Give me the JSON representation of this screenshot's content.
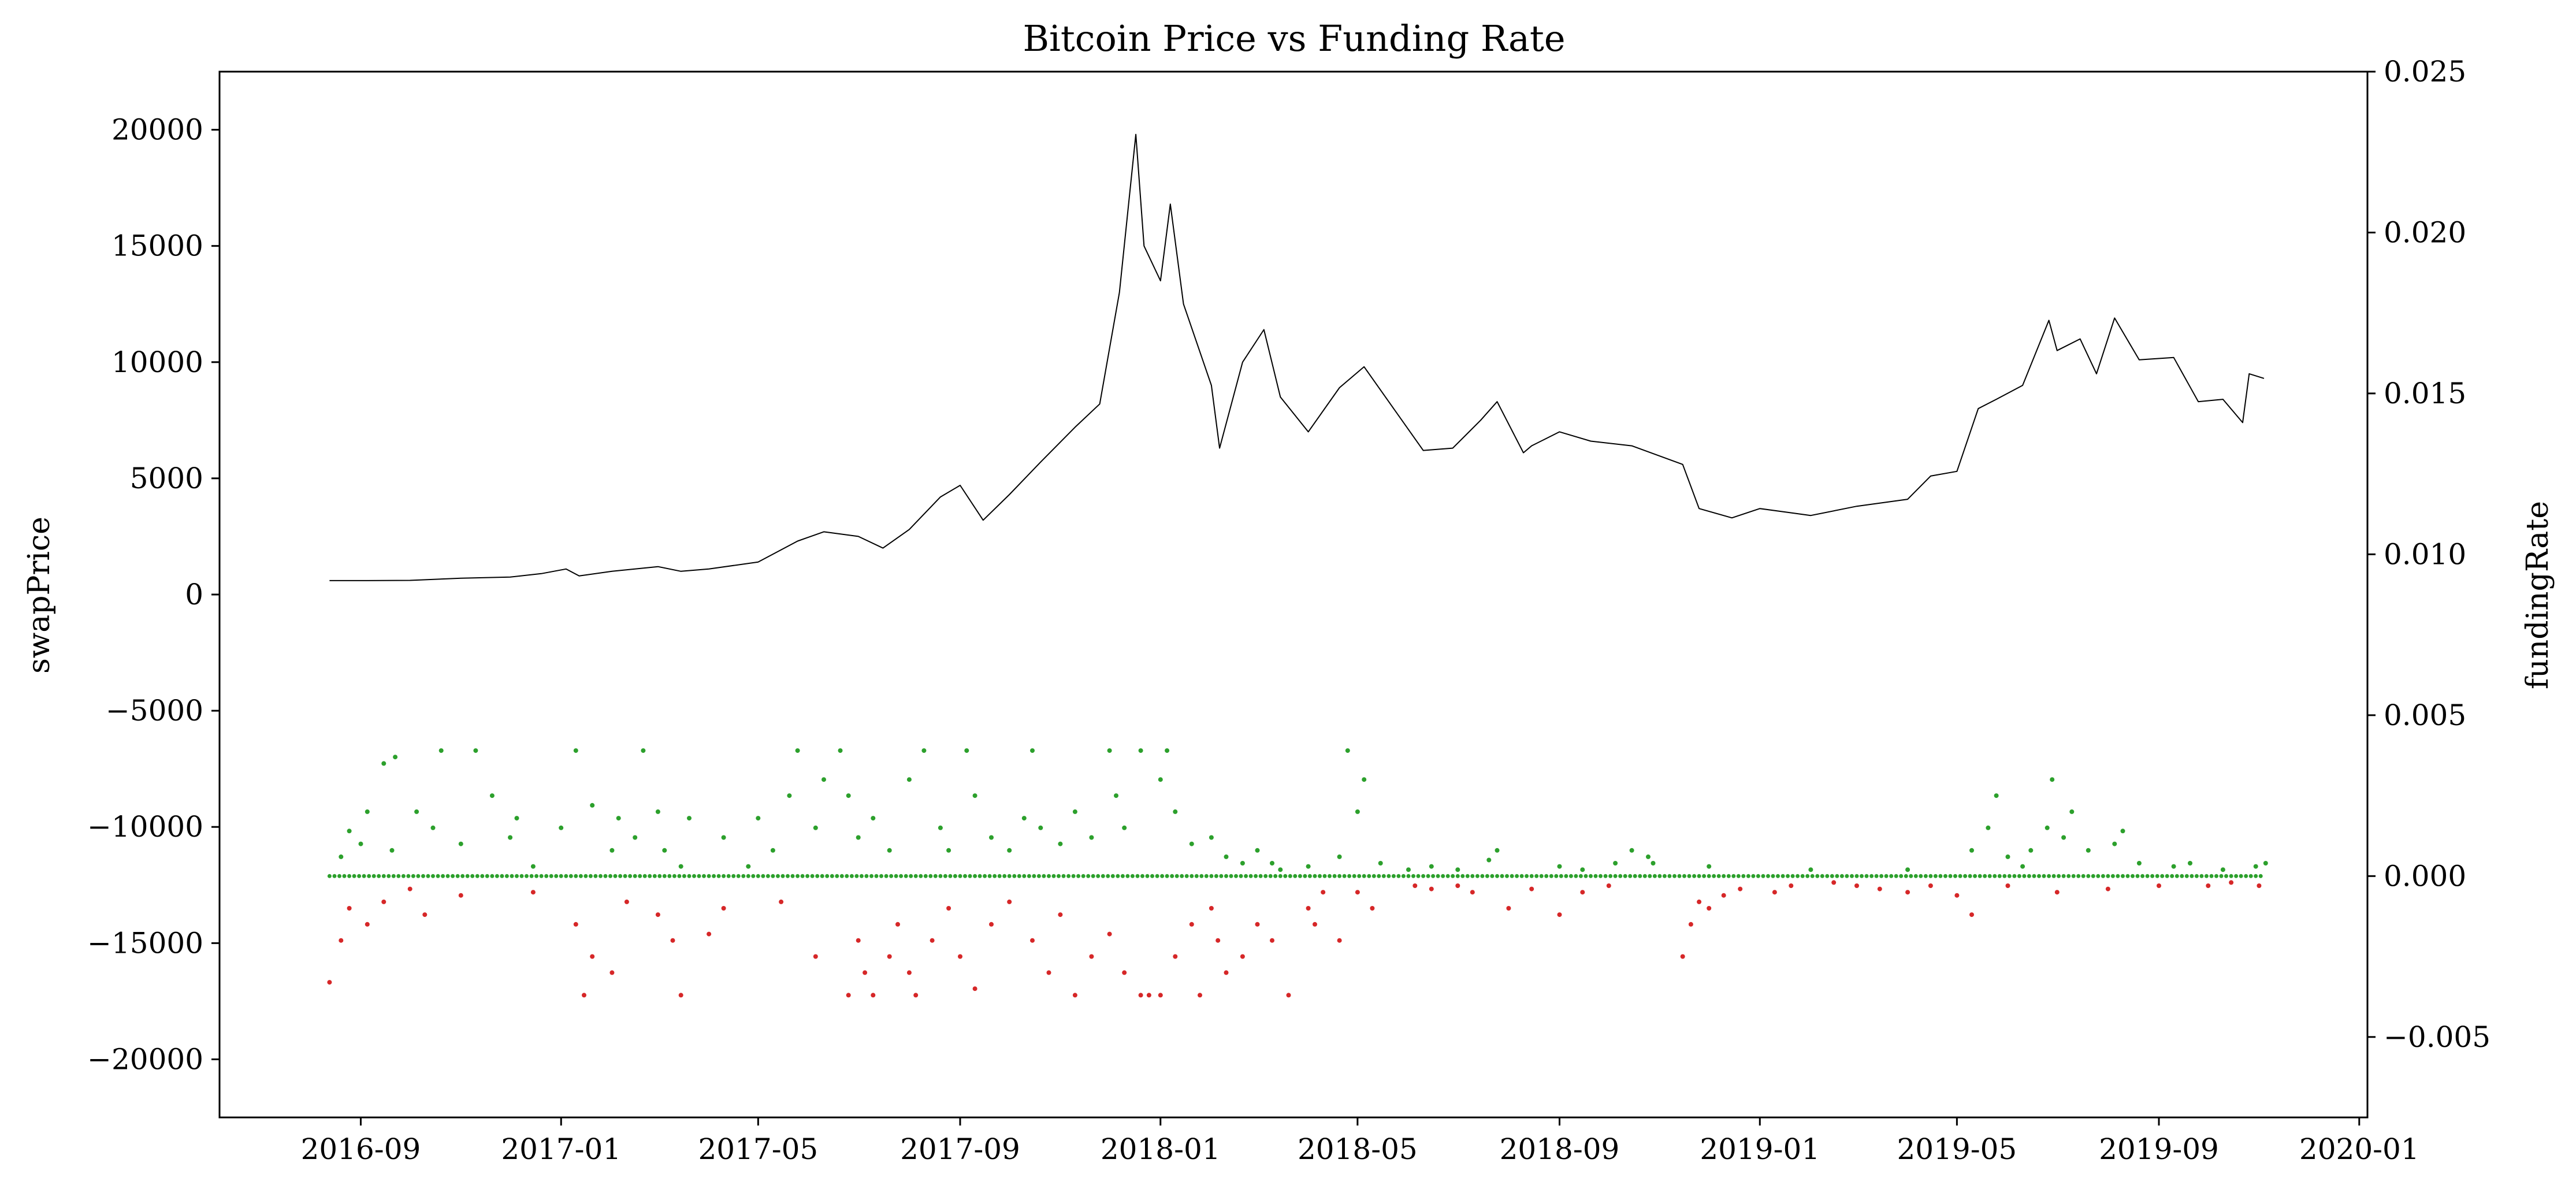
{
  "chart_data": {
    "type": "line",
    "title": "Bitcoin Price vs Funding Rate",
    "xlabel": "",
    "ylabel_left": "swapPrice",
    "ylabel_right": "fundingRate",
    "grid": false,
    "legend": "none",
    "x_ticks": [
      "2016-09",
      "2017-01",
      "2017-05",
      "2017-09",
      "2018-01",
      "2018-05",
      "2018-09",
      "2019-01",
      "2019-05",
      "2019-09",
      "2020-01"
    ],
    "y_left_ticks": [
      "20000",
      "15000",
      "10000",
      "5000",
      "0",
      "−5000",
      "−10000",
      "−15000",
      "−20000"
    ],
    "y_right_ticks": [
      "0.025",
      "0.020",
      "0.015",
      "0.010",
      "0.005",
      "0.000",
      "−0.005"
    ],
    "y_left_lim": [
      -22500,
      22500
    ],
    "y_right_lim": [
      -0.0075,
      0.025
    ],
    "x_lim": [
      "2016-06-07",
      "2020-01-06"
    ],
    "colors": {
      "price": "#000000",
      "positive_rate": "#2ca02c",
      "negative_rate": "#d62728"
    },
    "series": [
      {
        "axis": "left",
        "style": "line",
        "x": [
          "2016-08-13",
          "2016-09-01",
          "2016-10-01",
          "2016-11-01",
          "2016-12-01",
          "2016-12-20",
          "2017-01-04",
          "2017-01-12",
          "2017-02-01",
          "2017-03-01",
          "2017-03-15",
          "2017-04-01",
          "2017-05-01",
          "2017-05-25",
          "2017-06-10",
          "2017-07-01",
          "2017-07-16",
          "2017-08-01",
          "2017-08-20",
          "2017-09-01",
          "2017-09-15",
          "2017-10-01",
          "2017-10-20",
          "2017-11-10",
          "2017-11-25",
          "2017-12-07",
          "2017-12-17",
          "2017-12-22",
          "2018-01-01",
          "2018-01-07",
          "2018-01-15",
          "2018-02-01",
          "2018-02-06",
          "2018-02-20",
          "2018-03-05",
          "2018-03-15",
          "2018-04-01",
          "2018-04-20",
          "2018-05-05",
          "2018-05-20",
          "2018-06-10",
          "2018-06-28",
          "2018-07-15",
          "2018-07-25",
          "2018-08-10",
          "2018-08-15",
          "2018-09-01",
          "2018-09-20",
          "2018-10-15",
          "2018-11-15",
          "2018-11-25",
          "2018-12-15",
          "2019-01-01",
          "2019-02-01",
          "2019-03-01",
          "2019-04-01",
          "2019-04-15",
          "2019-05-01",
          "2019-05-14",
          "2019-05-25",
          "2019-06-10",
          "2019-06-26",
          "2019-07-01",
          "2019-07-15",
          "2019-07-25",
          "2019-08-05",
          "2019-08-20",
          "2019-09-10",
          "2019-09-25",
          "2019-10-10",
          "2019-10-22",
          "2019-10-26",
          "2019-11-04"
        ],
        "values": [
          600,
          600,
          610,
          700,
          750,
          900,
          1100,
          800,
          1000,
          1200,
          1000,
          1100,
          1400,
          2300,
          2700,
          2500,
          2000,
          2800,
          4200,
          4700,
          3200,
          4300,
          5700,
          7200,
          8200,
          13000,
          19800,
          15000,
          13500,
          16800,
          12500,
          9000,
          6300,
          10000,
          11400,
          8500,
          7000,
          8900,
          9800,
          8300,
          6200,
          6300,
          7500,
          8300,
          6100,
          6400,
          7000,
          6600,
          6400,
          5600,
          3700,
          3300,
          3700,
          3400,
          3800,
          4100,
          5100,
          5300,
          8000,
          8400,
          9000,
          11800,
          10500,
          11000,
          9500,
          11900,
          10100,
          10200,
          8300,
          8400,
          7400,
          9500,
          9300
        ]
      },
      {
        "axis": "right",
        "style": "scatter",
        "name": "",
        "note": "positive funding rates",
        "x": [
          "2016-08-20",
          "2016-08-25",
          "2016-09-01",
          "2016-09-05",
          "2016-09-15",
          "2016-09-20",
          "2016-09-22",
          "2016-10-05",
          "2016-10-15",
          "2016-10-20",
          "2016-11-01",
          "2016-11-10",
          "2016-11-20",
          "2016-12-01",
          "2016-12-05",
          "2016-12-15",
          "2017-01-01",
          "2017-01-10",
          "2017-01-20",
          "2017-02-01",
          "2017-02-05",
          "2017-02-15",
          "2017-02-20",
          "2017-03-01",
          "2017-03-05",
          "2017-03-15",
          "2017-03-20",
          "2017-04-10",
          "2017-04-25",
          "2017-05-01",
          "2017-05-10",
          "2017-05-20",
          "2017-05-25",
          "2017-06-05",
          "2017-06-10",
          "2017-06-20",
          "2017-06-25",
          "2017-07-01",
          "2017-07-10",
          "2017-07-20",
          "2017-08-01",
          "2017-08-10",
          "2017-08-20",
          "2017-08-25",
          "2017-09-05",
          "2017-09-10",
          "2017-09-20",
          "2017-10-01",
          "2017-10-10",
          "2017-10-15",
          "2017-10-20",
          "2017-11-01",
          "2017-11-10",
          "2017-11-20",
          "2017-12-01",
          "2017-12-05",
          "2017-12-10",
          "2017-12-20",
          "2018-01-01",
          "2018-01-05",
          "2018-01-10",
          "2018-01-20",
          "2018-02-01",
          "2018-02-10",
          "2018-02-20",
          "2018-03-01",
          "2018-03-10",
          "2018-03-15",
          "2018-04-01",
          "2018-04-20",
          "2018-04-25",
          "2018-05-01",
          "2018-05-05",
          "2018-05-15",
          "2018-06-01",
          "2018-06-15",
          "2018-07-01",
          "2018-07-20",
          "2018-07-25",
          "2018-09-01",
          "2018-09-15",
          "2018-10-05",
          "2018-10-15",
          "2018-10-25",
          "2018-10-28",
          "2018-12-01",
          "2019-02-01",
          "2019-04-01",
          "2019-05-10",
          "2019-05-20",
          "2019-05-25",
          "2019-06-01",
          "2019-06-10",
          "2019-06-15",
          "2019-06-25",
          "2019-06-28",
          "2019-07-05",
          "2019-07-10",
          "2019-07-20",
          "2019-08-05",
          "2019-08-10",
          "2019-08-20",
          "2019-09-10",
          "2019-09-20",
          "2019-10-10",
          "2019-10-30",
          "2019-11-05"
        ],
        "values": [
          0.0006,
          0.0014,
          0.001,
          0.002,
          0.0035,
          0.0008,
          0.0037,
          0.002,
          0.0015,
          0.0039,
          0.001,
          0.0039,
          0.0025,
          0.0012,
          0.0018,
          0.0003,
          0.0015,
          0.0039,
          0.0022,
          0.0008,
          0.0018,
          0.0012,
          0.0039,
          0.002,
          0.0008,
          0.0003,
          0.0018,
          0.0012,
          0.0003,
          0.0018,
          0.0008,
          0.0025,
          0.0039,
          0.0015,
          0.003,
          0.0039,
          0.0025,
          0.0012,
          0.0018,
          0.0008,
          0.003,
          0.0039,
          0.0015,
          0.0008,
          0.0039,
          0.0025,
          0.0012,
          0.0008,
          0.0018,
          0.0039,
          0.0015,
          0.001,
          0.002,
          0.0012,
          0.0039,
          0.0025,
          0.0015,
          0.0039,
          0.003,
          0.0039,
          0.002,
          0.001,
          0.0012,
          0.0006,
          0.0004,
          0.0008,
          0.0004,
          0.0002,
          0.0003,
          0.0006,
          0.0039,
          0.002,
          0.003,
          0.0004,
          0.0002,
          0.0003,
          0.0002,
          0.0005,
          0.0008,
          0.0003,
          0.0002,
          0.0004,
          0.0008,
          0.0006,
          0.0004,
          0.0003,
          0.0002,
          0.0002,
          0.0008,
          0.0015,
          0.0025,
          0.0006,
          0.0003,
          0.0008,
          0.0015,
          0.003,
          0.0012,
          0.002,
          0.0008,
          0.001,
          0.0014,
          0.0004,
          0.0003,
          0.0004,
          0.0002,
          0.0003,
          0.0004
        ]
      },
      {
        "axis": "right",
        "style": "scatter",
        "name": "",
        "note": "negative funding rates",
        "x": [
          "2016-08-13",
          "2016-08-20",
          "2016-08-25",
          "2016-09-05",
          "2016-09-15",
          "2016-10-01",
          "2016-10-10",
          "2016-11-01",
          "2016-12-15",
          "2017-01-10",
          "2017-01-15",
          "2017-01-20",
          "2017-02-01",
          "2017-02-10",
          "2017-03-01",
          "2017-03-10",
          "2017-03-15",
          "2017-04-01",
          "2017-04-10",
          "2017-05-15",
          "2017-06-05",
          "2017-06-25",
          "2017-07-01",
          "2017-07-05",
          "2017-07-10",
          "2017-07-20",
          "2017-07-25",
          "2017-08-01",
          "2017-08-05",
          "2017-08-15",
          "2017-08-25",
          "2017-09-01",
          "2017-09-10",
          "2017-09-20",
          "2017-10-01",
          "2017-10-15",
          "2017-10-25",
          "2017-11-01",
          "2017-11-10",
          "2017-11-20",
          "2017-12-01",
          "2017-12-10",
          "2017-12-20",
          "2017-12-25",
          "2018-01-01",
          "2018-01-10",
          "2018-01-20",
          "2018-01-25",
          "2018-02-01",
          "2018-02-05",
          "2018-02-10",
          "2018-02-20",
          "2018-03-01",
          "2018-03-10",
          "2018-03-20",
          "2018-04-01",
          "2018-04-05",
          "2018-04-10",
          "2018-04-20",
          "2018-05-01",
          "2018-05-10",
          "2018-06-05",
          "2018-06-15",
          "2018-07-01",
          "2018-07-10",
          "2018-08-01",
          "2018-08-15",
          "2018-09-01",
          "2018-09-15",
          "2018-10-01",
          "2018-11-15",
          "2018-11-20",
          "2018-11-25",
          "2018-12-01",
          "2018-12-10",
          "2018-12-20",
          "2019-01-10",
          "2019-01-20",
          "2019-02-15",
          "2019-03-01",
          "2019-03-15",
          "2019-04-01",
          "2019-04-15",
          "2019-05-01",
          "2019-05-10",
          "2019-06-01",
          "2019-07-01",
          "2019-08-01",
          "2019-09-01",
          "2019-10-01",
          "2019-10-15",
          "2019-11-01"
        ],
        "values": [
          -0.0033,
          -0.002,
          -0.001,
          -0.0015,
          -0.0008,
          -0.0004,
          -0.0012,
          -0.0006,
          -0.0005,
          -0.0015,
          -0.0037,
          -0.0025,
          -0.003,
          -0.0008,
          -0.0012,
          -0.002,
          -0.0037,
          -0.0018,
          -0.001,
          -0.0008,
          -0.0025,
          -0.0037,
          -0.002,
          -0.003,
          -0.0037,
          -0.0025,
          -0.0015,
          -0.003,
          -0.0037,
          -0.002,
          -0.001,
          -0.0025,
          -0.0035,
          -0.0015,
          -0.0008,
          -0.002,
          -0.003,
          -0.0012,
          -0.0037,
          -0.0025,
          -0.0018,
          -0.003,
          -0.0037,
          -0.0037,
          -0.0037,
          -0.0025,
          -0.0015,
          -0.0037,
          -0.001,
          -0.002,
          -0.003,
          -0.0025,
          -0.0015,
          -0.002,
          -0.0037,
          -0.001,
          -0.0015,
          -0.0005,
          -0.002,
          -0.0005,
          -0.001,
          -0.0003,
          -0.0004,
          -0.0003,
          -0.0005,
          -0.001,
          -0.0004,
          -0.0012,
          -0.0005,
          -0.0003,
          -0.0025,
          -0.0015,
          -0.0008,
          -0.001,
          -0.0006,
          -0.0004,
          -0.0005,
          -0.0003,
          -0.0002,
          -0.0003,
          -0.0004,
          -0.0005,
          -0.0003,
          -0.0006,
          -0.0012,
          -0.0003,
          -0.0005,
          -0.0004,
          -0.0003,
          -0.0003,
          -0.0002,
          -0.0003
        ]
      }
    ]
  }
}
